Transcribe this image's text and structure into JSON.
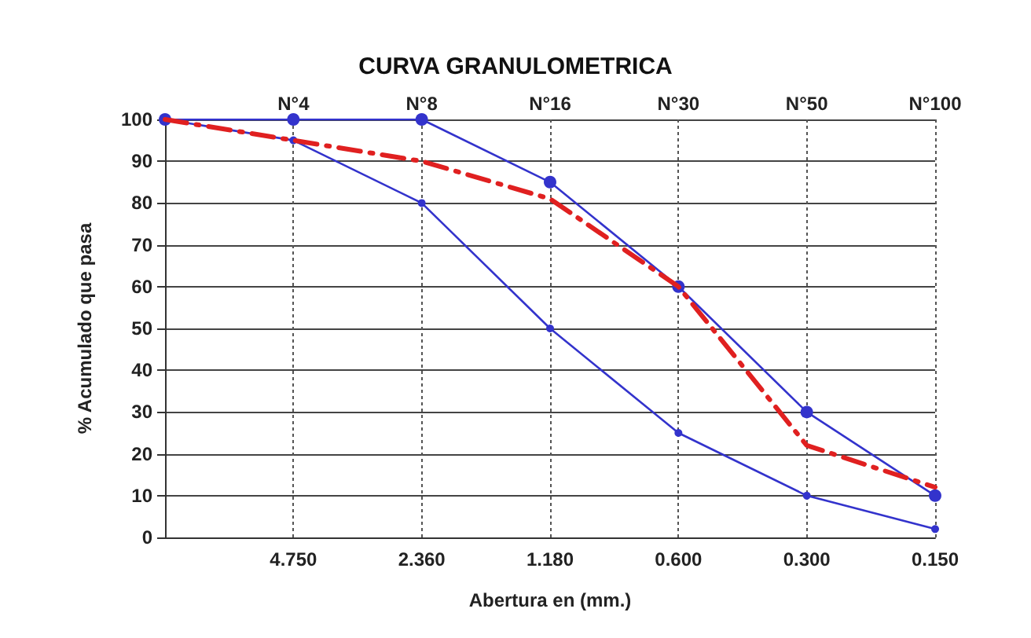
{
  "chart_data": {
    "type": "line",
    "title": "CURVA GRANULOMETRICA",
    "xlabel": "Abertura en (mm.)",
    "ylabel": "% Acumulado que pasa",
    "categories": [
      null,
      "4.750",
      "2.360",
      "1.180",
      "0.600",
      "0.300",
      "0.150"
    ],
    "annotations": [
      "N°4",
      "N°8",
      "N°16",
      "N°30",
      "N°50",
      "N°100"
    ],
    "series": [
      {
        "color": "#3333cc",
        "values": [
          100,
          100,
          100,
          85,
          60,
          30,
          10
        ],
        "marker": "circle"
      },
      {
        "color": "#3333cc",
        "values": [
          100,
          95,
          80,
          50,
          25,
          10,
          2
        ],
        "marker": "circle"
      },
      {
        "color": "#e02020",
        "values": [
          100,
          95,
          90,
          81,
          60,
          22,
          12
        ],
        "marker": "none",
        "line_style": "dashed"
      }
    ],
    "ylim": [
      0,
      100
    ],
    "yticks": [
      0,
      10,
      20,
      30,
      40,
      50,
      60,
      70,
      80,
      90,
      100
    ],
    "grid": true
  }
}
